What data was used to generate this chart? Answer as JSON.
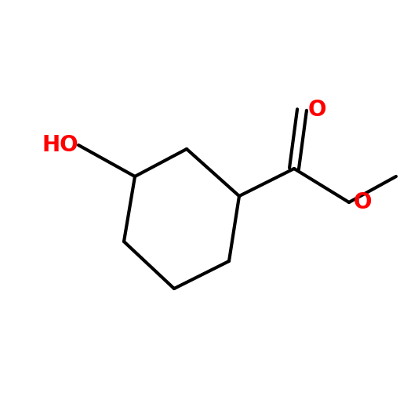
{
  "background_color": "#1a1a1a",
  "bond_color": "#000000",
  "bg_white": "#ffffff",
  "ho_color": "#ff0000",
  "o_color": "#ff0000",
  "ho_label": "HO",
  "o_label": "O",
  "bond_width": 3.0,
  "figsize": [
    5.33,
    5.33
  ],
  "dpi": 100,
  "font_size": 20
}
